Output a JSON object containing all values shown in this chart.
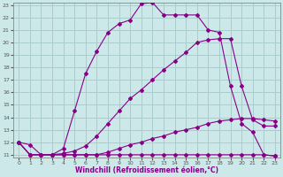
{
  "bg_color": "#cce8e8",
  "grid_color": "#aacccc",
  "line_color": "#880088",
  "xlabel": "Windchill (Refroidissement éolien,°C)",
  "xlabel_color": "#880088",
  "xlim": [
    -0.5,
    23.5
  ],
  "ylim": [
    10.8,
    23.2
  ],
  "xticks": [
    0,
    1,
    2,
    3,
    4,
    5,
    6,
    7,
    8,
    9,
    10,
    11,
    12,
    13,
    14,
    15,
    16,
    17,
    18,
    19,
    20,
    21,
    22,
    23
  ],
  "yticks": [
    11,
    12,
    13,
    14,
    15,
    16,
    17,
    18,
    19,
    20,
    21,
    22,
    23
  ],
  "line1_x": [
    0,
    1,
    2,
    3,
    4,
    5,
    6,
    7,
    8,
    9,
    10,
    11,
    12,
    13,
    14,
    15,
    16,
    17,
    18,
    19,
    20,
    21,
    22,
    23
  ],
  "line1_y": [
    12.0,
    11.8,
    11.0,
    11.0,
    11.0,
    11.0,
    11.0,
    11.0,
    11.0,
    11.0,
    11.0,
    11.0,
    11.0,
    11.0,
    11.0,
    11.0,
    11.0,
    11.0,
    11.0,
    11.0,
    11.0,
    11.0,
    11.0,
    10.9
  ],
  "line2_x": [
    0,
    1,
    2,
    3,
    4,
    5,
    6,
    7,
    8,
    9,
    10,
    11,
    12,
    13,
    14,
    15,
    16,
    17,
    18,
    19,
    20,
    21,
    22,
    23
  ],
  "line2_y": [
    12.0,
    11.0,
    11.0,
    11.0,
    11.0,
    11.0,
    11.0,
    11.0,
    11.2,
    11.5,
    11.8,
    12.0,
    12.3,
    12.5,
    12.8,
    13.0,
    13.2,
    13.5,
    13.7,
    13.8,
    13.9,
    13.9,
    13.8,
    13.7
  ],
  "line3_x": [
    0,
    1,
    2,
    3,
    4,
    5,
    6,
    7,
    8,
    9,
    10,
    11,
    12,
    13,
    14,
    15,
    16,
    17,
    18,
    19,
    20,
    21,
    22,
    23
  ],
  "line3_y": [
    12.0,
    11.0,
    11.0,
    11.0,
    11.1,
    11.3,
    11.7,
    12.5,
    13.5,
    14.5,
    15.5,
    16.2,
    17.0,
    17.8,
    18.5,
    19.2,
    20.0,
    20.2,
    20.3,
    20.3,
    16.5,
    13.8,
    13.3,
    13.3
  ],
  "line4_x": [
    0,
    1,
    2,
    3,
    4,
    5,
    6,
    7,
    8,
    9,
    10,
    11,
    12,
    13,
    14,
    15,
    16,
    17,
    18,
    19,
    20,
    21,
    22,
    23
  ],
  "line4_y": [
    12.0,
    11.0,
    11.0,
    11.0,
    11.5,
    14.5,
    17.5,
    19.3,
    20.8,
    21.5,
    21.8,
    23.1,
    23.2,
    22.2,
    22.2,
    22.2,
    22.2,
    21.0,
    20.8,
    16.5,
    13.5,
    12.8,
    11.0,
    10.9
  ]
}
